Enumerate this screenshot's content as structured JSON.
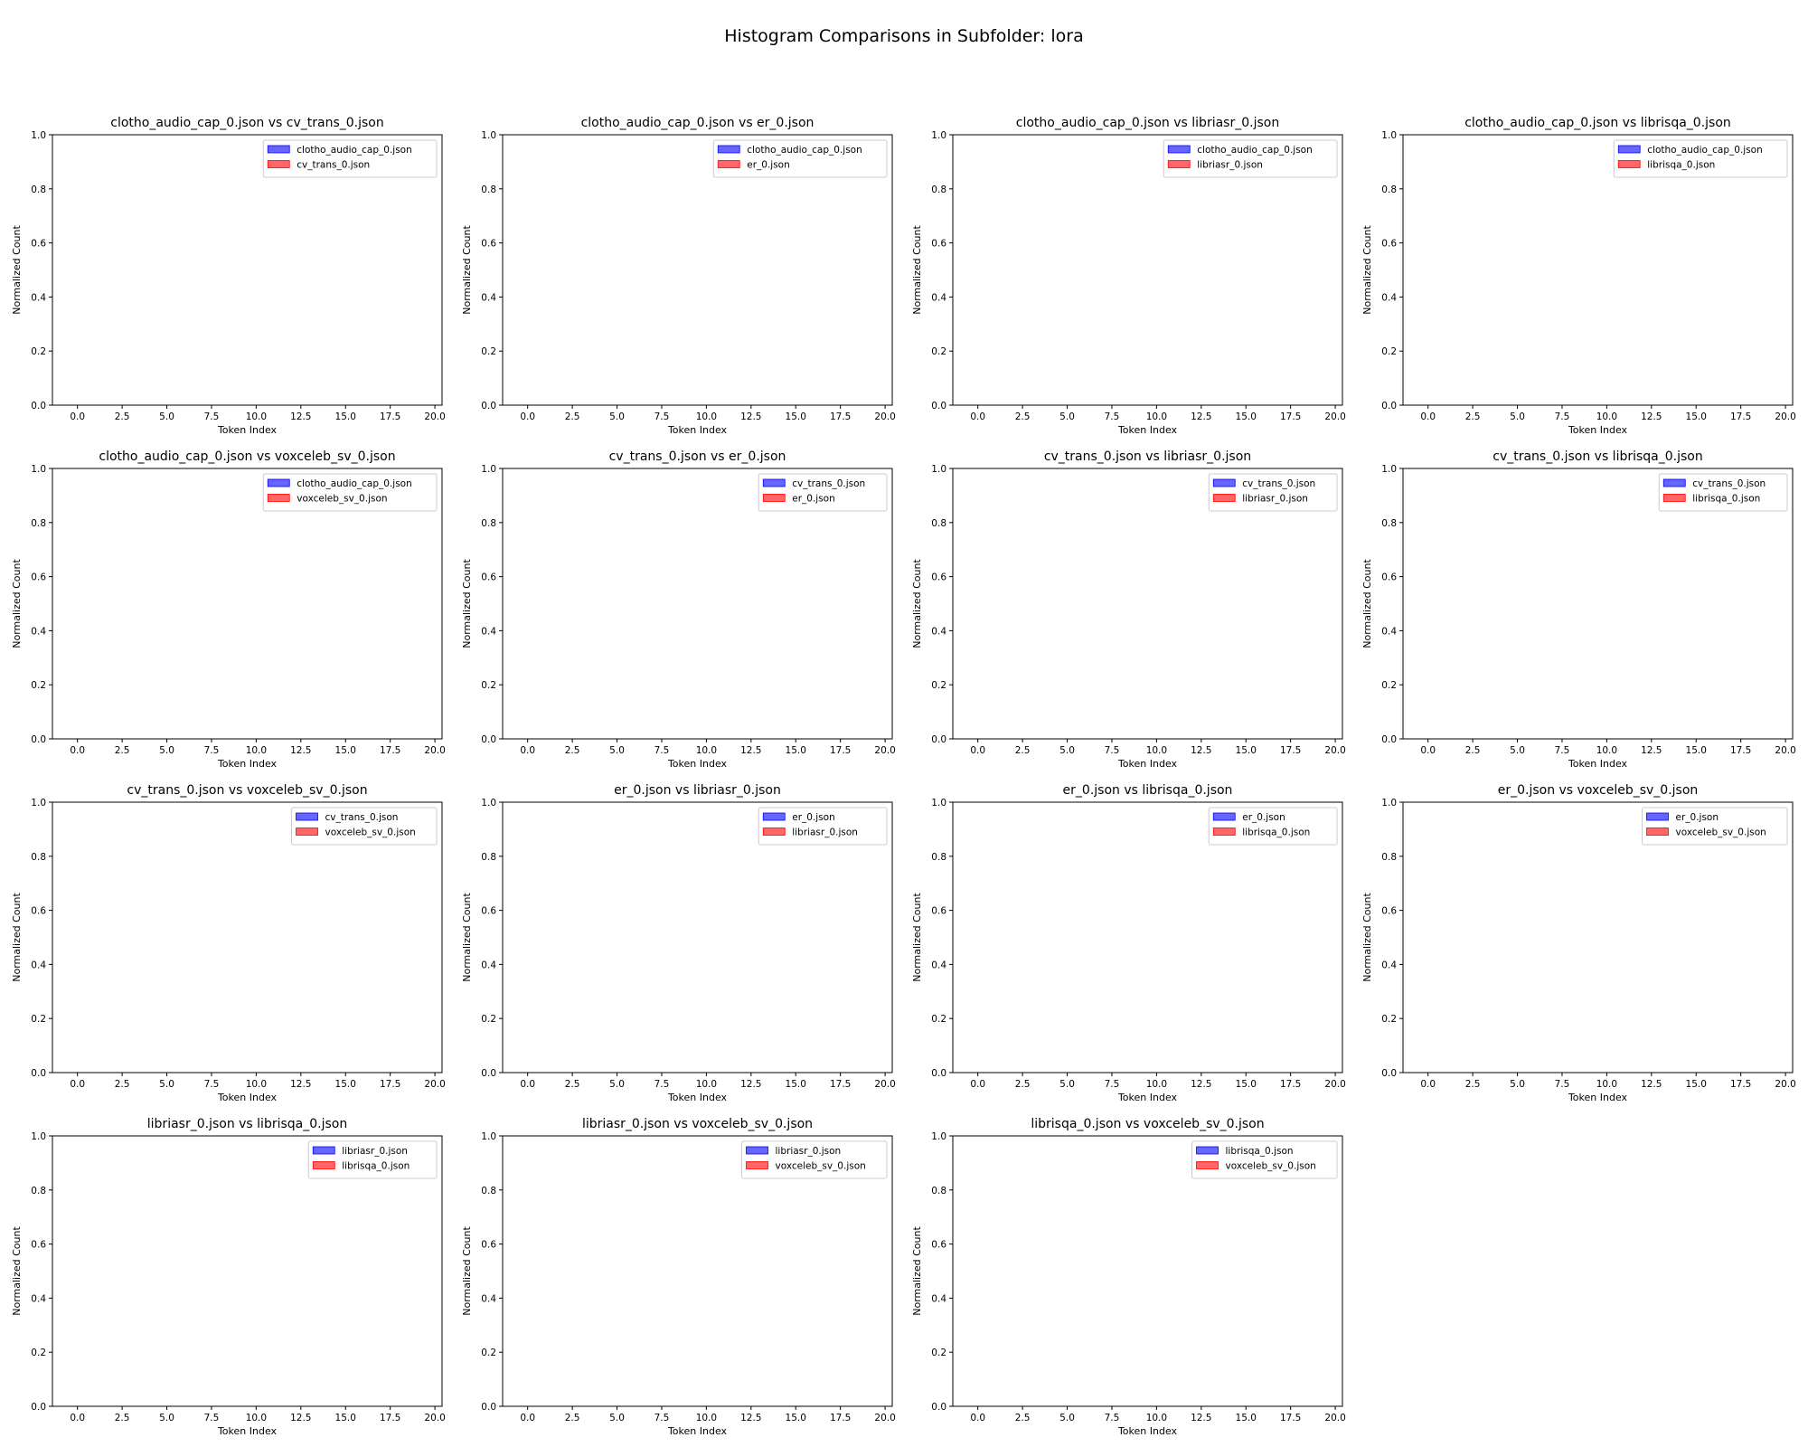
{
  "figure": {
    "suptitle": "Histogram Comparisons in Subfolder: lora"
  },
  "chart_data": [
    {
      "type": "bar",
      "title": "clotho_audio_cap_0.json vs cv_trans_0.json",
      "xlabel": "Token Index",
      "ylabel": "Normalized Count",
      "xlim": [
        -1.4,
        20.4
      ],
      "ylim": [
        0,
        1
      ],
      "xticks": [
        "0.0",
        "2.5",
        "5.0",
        "7.5",
        "10.0",
        "12.5",
        "15.0",
        "17.5",
        "20.0"
      ],
      "yticks": [
        "0.0",
        "0.2",
        "0.4",
        "0.6",
        "0.8",
        "1.0"
      ],
      "legend_position": "upper right",
      "series": [
        {
          "name": "clotho_audio_cap_0.json",
          "color": "#0000ff",
          "values": []
        },
        {
          "name": "cv_trans_0.json",
          "color": "#ff0000",
          "values": []
        }
      ]
    },
    {
      "type": "bar",
      "title": "clotho_audio_cap_0.json vs er_0.json",
      "xlabel": "Token Index",
      "ylabel": "Normalized Count",
      "xlim": [
        -1.4,
        20.4
      ],
      "ylim": [
        0,
        1
      ],
      "xticks": [
        "0.0",
        "2.5",
        "5.0",
        "7.5",
        "10.0",
        "12.5",
        "15.0",
        "17.5",
        "20.0"
      ],
      "yticks": [
        "0.0",
        "0.2",
        "0.4",
        "0.6",
        "0.8",
        "1.0"
      ],
      "legend_position": "upper right",
      "series": [
        {
          "name": "clotho_audio_cap_0.json",
          "color": "#0000ff",
          "values": []
        },
        {
          "name": "er_0.json",
          "color": "#ff0000",
          "values": []
        }
      ]
    },
    {
      "type": "bar",
      "title": "clotho_audio_cap_0.json vs libriasr_0.json",
      "xlabel": "Token Index",
      "ylabel": "Normalized Count",
      "xlim": [
        -1.4,
        20.4
      ],
      "ylim": [
        0,
        1
      ],
      "xticks": [
        "0.0",
        "2.5",
        "5.0",
        "7.5",
        "10.0",
        "12.5",
        "15.0",
        "17.5",
        "20.0"
      ],
      "yticks": [
        "0.0",
        "0.2",
        "0.4",
        "0.6",
        "0.8",
        "1.0"
      ],
      "legend_position": "upper right",
      "series": [
        {
          "name": "clotho_audio_cap_0.json",
          "color": "#0000ff",
          "values": []
        },
        {
          "name": "libriasr_0.json",
          "color": "#ff0000",
          "values": []
        }
      ]
    },
    {
      "type": "bar",
      "title": "clotho_audio_cap_0.json vs librisqa_0.json",
      "xlabel": "Token Index",
      "ylabel": "Normalized Count",
      "xlim": [
        -1.4,
        20.4
      ],
      "ylim": [
        0,
        1
      ],
      "xticks": [
        "0.0",
        "2.5",
        "5.0",
        "7.5",
        "10.0",
        "12.5",
        "15.0",
        "17.5",
        "20.0"
      ],
      "yticks": [
        "0.0",
        "0.2",
        "0.4",
        "0.6",
        "0.8",
        "1.0"
      ],
      "legend_position": "upper right",
      "series": [
        {
          "name": "clotho_audio_cap_0.json",
          "color": "#0000ff",
          "values": []
        },
        {
          "name": "librisqa_0.json",
          "color": "#ff0000",
          "values": []
        }
      ]
    },
    {
      "type": "bar",
      "title": "clotho_audio_cap_0.json vs voxceleb_sv_0.json",
      "xlabel": "Token Index",
      "ylabel": "Normalized Count",
      "xlim": [
        -1.4,
        20.4
      ],
      "ylim": [
        0,
        1
      ],
      "xticks": [
        "0.0",
        "2.5",
        "5.0",
        "7.5",
        "10.0",
        "12.5",
        "15.0",
        "17.5",
        "20.0"
      ],
      "yticks": [
        "0.0",
        "0.2",
        "0.4",
        "0.6",
        "0.8",
        "1.0"
      ],
      "legend_position": "upper right",
      "series": [
        {
          "name": "clotho_audio_cap_0.json",
          "color": "#0000ff",
          "values": []
        },
        {
          "name": "voxceleb_sv_0.json",
          "color": "#ff0000",
          "values": []
        }
      ]
    },
    {
      "type": "bar",
      "title": "cv_trans_0.json vs er_0.json",
      "xlabel": "Token Index",
      "ylabel": "Normalized Count",
      "xlim": [
        -1.4,
        20.4
      ],
      "ylim": [
        0,
        1
      ],
      "xticks": [
        "0.0",
        "2.5",
        "5.0",
        "7.5",
        "10.0",
        "12.5",
        "15.0",
        "17.5",
        "20.0"
      ],
      "yticks": [
        "0.0",
        "0.2",
        "0.4",
        "0.6",
        "0.8",
        "1.0"
      ],
      "legend_position": "upper right",
      "series": [
        {
          "name": "cv_trans_0.json",
          "color": "#0000ff",
          "values": []
        },
        {
          "name": "er_0.json",
          "color": "#ff0000",
          "values": []
        }
      ]
    },
    {
      "type": "bar",
      "title": "cv_trans_0.json vs libriasr_0.json",
      "xlabel": "Token Index",
      "ylabel": "Normalized Count",
      "xlim": [
        -1.4,
        20.4
      ],
      "ylim": [
        0,
        1
      ],
      "xticks": [
        "0.0",
        "2.5",
        "5.0",
        "7.5",
        "10.0",
        "12.5",
        "15.0",
        "17.5",
        "20.0"
      ],
      "yticks": [
        "0.0",
        "0.2",
        "0.4",
        "0.6",
        "0.8",
        "1.0"
      ],
      "legend_position": "upper right",
      "series": [
        {
          "name": "cv_trans_0.json",
          "color": "#0000ff",
          "values": []
        },
        {
          "name": "libriasr_0.json",
          "color": "#ff0000",
          "values": []
        }
      ]
    },
    {
      "type": "bar",
      "title": "cv_trans_0.json vs librisqa_0.json",
      "xlabel": "Token Index",
      "ylabel": "Normalized Count",
      "xlim": [
        -1.4,
        20.4
      ],
      "ylim": [
        0,
        1
      ],
      "xticks": [
        "0.0",
        "2.5",
        "5.0",
        "7.5",
        "10.0",
        "12.5",
        "15.0",
        "17.5",
        "20.0"
      ],
      "yticks": [
        "0.0",
        "0.2",
        "0.4",
        "0.6",
        "0.8",
        "1.0"
      ],
      "legend_position": "upper right",
      "series": [
        {
          "name": "cv_trans_0.json",
          "color": "#0000ff",
          "values": []
        },
        {
          "name": "librisqa_0.json",
          "color": "#ff0000",
          "values": []
        }
      ]
    },
    {
      "type": "bar",
      "title": "cv_trans_0.json vs voxceleb_sv_0.json",
      "xlabel": "Token Index",
      "ylabel": "Normalized Count",
      "xlim": [
        -1.4,
        20.4
      ],
      "ylim": [
        0,
        1
      ],
      "xticks": [
        "0.0",
        "2.5",
        "5.0",
        "7.5",
        "10.0",
        "12.5",
        "15.0",
        "17.5",
        "20.0"
      ],
      "yticks": [
        "0.0",
        "0.2",
        "0.4",
        "0.6",
        "0.8",
        "1.0"
      ],
      "legend_position": "upper right",
      "series": [
        {
          "name": "cv_trans_0.json",
          "color": "#0000ff",
          "values": []
        },
        {
          "name": "voxceleb_sv_0.json",
          "color": "#ff0000",
          "values": []
        }
      ]
    },
    {
      "type": "bar",
      "title": "er_0.json vs libriasr_0.json",
      "xlabel": "Token Index",
      "ylabel": "Normalized Count",
      "xlim": [
        -1.4,
        20.4
      ],
      "ylim": [
        0,
        1
      ],
      "xticks": [
        "0.0",
        "2.5",
        "5.0",
        "7.5",
        "10.0",
        "12.5",
        "15.0",
        "17.5",
        "20.0"
      ],
      "yticks": [
        "0.0",
        "0.2",
        "0.4",
        "0.6",
        "0.8",
        "1.0"
      ],
      "legend_position": "upper right",
      "series": [
        {
          "name": "er_0.json",
          "color": "#0000ff",
          "values": []
        },
        {
          "name": "libriasr_0.json",
          "color": "#ff0000",
          "values": []
        }
      ]
    },
    {
      "type": "bar",
      "title": "er_0.json vs librisqa_0.json",
      "xlabel": "Token Index",
      "ylabel": "Normalized Count",
      "xlim": [
        -1.4,
        20.4
      ],
      "ylim": [
        0,
        1
      ],
      "xticks": [
        "0.0",
        "2.5",
        "5.0",
        "7.5",
        "10.0",
        "12.5",
        "15.0",
        "17.5",
        "20.0"
      ],
      "yticks": [
        "0.0",
        "0.2",
        "0.4",
        "0.6",
        "0.8",
        "1.0"
      ],
      "legend_position": "upper right",
      "series": [
        {
          "name": "er_0.json",
          "color": "#0000ff",
          "values": []
        },
        {
          "name": "librisqa_0.json",
          "color": "#ff0000",
          "values": []
        }
      ]
    },
    {
      "type": "bar",
      "title": "er_0.json vs voxceleb_sv_0.json",
      "xlabel": "Token Index",
      "ylabel": "Normalized Count",
      "xlim": [
        -1.4,
        20.4
      ],
      "ylim": [
        0,
        1
      ],
      "xticks": [
        "0.0",
        "2.5",
        "5.0",
        "7.5",
        "10.0",
        "12.5",
        "15.0",
        "17.5",
        "20.0"
      ],
      "yticks": [
        "0.0",
        "0.2",
        "0.4",
        "0.6",
        "0.8",
        "1.0"
      ],
      "legend_position": "upper right",
      "series": [
        {
          "name": "er_0.json",
          "color": "#0000ff",
          "values": []
        },
        {
          "name": "voxceleb_sv_0.json",
          "color": "#ff0000",
          "values": []
        }
      ]
    },
    {
      "type": "bar",
      "title": "libriasr_0.json vs librisqa_0.json",
      "xlabel": "Token Index",
      "ylabel": "Normalized Count",
      "xlim": [
        -1.4,
        20.4
      ],
      "ylim": [
        0,
        1
      ],
      "xticks": [
        "0.0",
        "2.5",
        "5.0",
        "7.5",
        "10.0",
        "12.5",
        "15.0",
        "17.5",
        "20.0"
      ],
      "yticks": [
        "0.0",
        "0.2",
        "0.4",
        "0.6",
        "0.8",
        "1.0"
      ],
      "legend_position": "upper right",
      "series": [
        {
          "name": "libriasr_0.json",
          "color": "#0000ff",
          "values": []
        },
        {
          "name": "librisqa_0.json",
          "color": "#ff0000",
          "values": []
        }
      ]
    },
    {
      "type": "bar",
      "title": "libriasr_0.json vs voxceleb_sv_0.json",
      "xlabel": "Token Index",
      "ylabel": "Normalized Count",
      "xlim": [
        -1.4,
        20.4
      ],
      "ylim": [
        0,
        1
      ],
      "xticks": [
        "0.0",
        "2.5",
        "5.0",
        "7.5",
        "10.0",
        "12.5",
        "15.0",
        "17.5",
        "20.0"
      ],
      "yticks": [
        "0.0",
        "0.2",
        "0.4",
        "0.6",
        "0.8",
        "1.0"
      ],
      "legend_position": "upper right",
      "series": [
        {
          "name": "libriasr_0.json",
          "color": "#0000ff",
          "values": []
        },
        {
          "name": "voxceleb_sv_0.json",
          "color": "#ff0000",
          "values": []
        }
      ]
    },
    {
      "type": "bar",
      "title": "librisqa_0.json vs voxceleb_sv_0.json",
      "xlabel": "Token Index",
      "ylabel": "Normalized Count",
      "xlim": [
        -1.4,
        20.4
      ],
      "ylim": [
        0,
        1
      ],
      "xticks": [
        "0.0",
        "2.5",
        "5.0",
        "7.5",
        "10.0",
        "12.5",
        "15.0",
        "17.5",
        "20.0"
      ],
      "yticks": [
        "0.0",
        "0.2",
        "0.4",
        "0.6",
        "0.8",
        "1.0"
      ],
      "legend_position": "upper right",
      "series": [
        {
          "name": "librisqa_0.json",
          "color": "#0000ff",
          "values": []
        },
        {
          "name": "voxceleb_sv_0.json",
          "color": "#ff0000",
          "values": []
        }
      ]
    }
  ]
}
